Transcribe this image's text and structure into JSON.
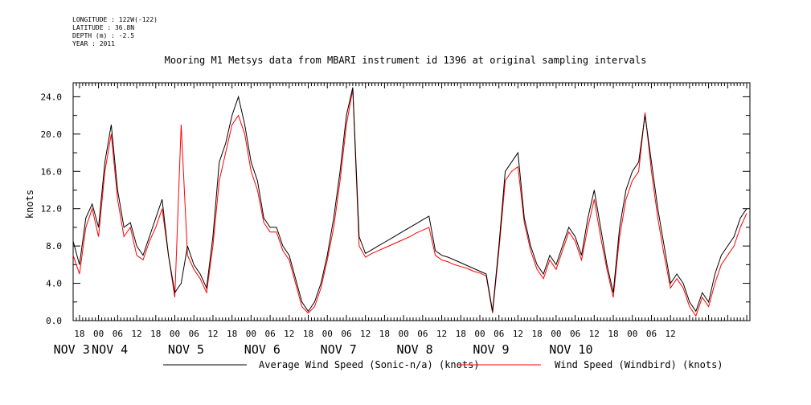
{
  "header": {
    "longitude": "LONGITUDE : 122W(-122)",
    "latitude": "LATITUDE : 36.8N",
    "depth": "DEPTH (m) : -2.5",
    "year": "YEAR : 2011"
  },
  "chart_data": {
    "type": "line",
    "title": "Mooring M1 Metsys data from MBARI instrument id 1396 at original sampling intervals",
    "ylabel": "knots",
    "ylim": [
      0,
      25.5
    ],
    "y_ticks": [
      "0.0",
      "4.0",
      "8.0",
      "12.0",
      "16.0",
      "20.0",
      "24.0"
    ],
    "x_hour_ticks": [
      "18",
      "00",
      "06",
      "12",
      "18",
      "00",
      "06",
      "12",
      "18",
      "00",
      "06",
      "12",
      "18",
      "00",
      "06",
      "12",
      "18",
      "00",
      "06",
      "12",
      "18",
      "00",
      "06",
      "12",
      "18",
      "00",
      "06",
      "12",
      "18",
      "00",
      "06",
      "12"
    ],
    "x_day_labels": [
      {
        "label": "NOV  3",
        "hour": 0
      },
      {
        "label": "NOV  4",
        "hour": 12
      },
      {
        "label": "NOV  5",
        "hour": 24
      },
      {
        "label": "NOV  6",
        "hour": 24
      },
      {
        "label": "NOV  7",
        "hour": 24
      },
      {
        "label": "NOV  8",
        "hour": 24
      },
      {
        "label": "NOV  9",
        "hour": 24
      },
      {
        "label": "NOV 10",
        "hour": 24
      }
    ],
    "x_hours_range": [
      -8,
      205
    ],
    "series": [
      {
        "name": "Average Wind Speed (Sonic-n/a) (knots)",
        "color": "#000000",
        "x": [
          -8,
          -6,
          -4,
          -2,
          0,
          2,
          4,
          6,
          8,
          10,
          12,
          14,
          16,
          18,
          20,
          22,
          24,
          26,
          28,
          30,
          32,
          34,
          36,
          38,
          40,
          42,
          44,
          46,
          48,
          50,
          52,
          54,
          56,
          58,
          60,
          62,
          64,
          66,
          68,
          70,
          72,
          74,
          76,
          78,
          80,
          82,
          84,
          86,
          88,
          90,
          92,
          94,
          96,
          98,
          100,
          102,
          104,
          106,
          108,
          110,
          112,
          114,
          116,
          118,
          120,
          122,
          124,
          126,
          128,
          130,
          132,
          134,
          136,
          138,
          140,
          142,
          144,
          146,
          148,
          150,
          152,
          154,
          156,
          158,
          160,
          162,
          164,
          166,
          168,
          170,
          172,
          174,
          176,
          178,
          180,
          182,
          184,
          186,
          188,
          190,
          192,
          194,
          196,
          198,
          200,
          202,
          204
        ],
        "y": [
          8.5,
          6,
          11,
          12.5,
          10,
          17,
          21,
          14,
          10,
          10.5,
          8,
          7,
          9,
          11,
          13,
          7,
          3,
          4,
          8,
          6,
          5,
          3.5,
          9,
          17,
          19,
          22,
          24,
          21,
          17,
          15,
          11,
          10,
          10,
          8,
          7,
          4.5,
          2,
          1,
          2,
          4,
          7,
          11,
          16,
          22,
          25,
          9,
          7.2,
          7.6,
          8.0,
          8.4,
          8.8,
          9.2,
          9.6,
          10.0,
          10.4,
          10.8,
          11.2,
          7.5,
          7,
          6.8,
          6.5,
          6.2,
          5.9,
          5.6,
          5.3,
          5,
          1,
          8,
          16,
          17,
          18,
          11,
          8,
          6,
          5,
          7,
          6,
          8,
          10,
          9,
          7,
          11,
          14,
          10,
          6,
          3,
          10,
          14,
          16,
          17,
          22,
          17,
          12,
          8,
          4,
          5,
          4,
          2,
          1,
          3,
          2,
          5,
          7,
          8,
          9,
          11,
          12
        ]
      },
      {
        "name": "Wind Speed (Windbird) (knots)",
        "color": "#ff0000",
        "x": [
          -8,
          -6,
          -4,
          -2,
          0,
          2,
          4,
          6,
          8,
          10,
          12,
          14,
          16,
          18,
          20,
          22,
          24,
          26,
          28,
          30,
          32,
          34,
          36,
          38,
          40,
          42,
          44,
          46,
          48,
          50,
          52,
          54,
          56,
          58,
          60,
          62,
          64,
          66,
          68,
          70,
          72,
          74,
          76,
          78,
          80,
          82,
          84,
          86,
          88,
          90,
          92,
          94,
          96,
          98,
          100,
          102,
          104,
          106,
          108,
          110,
          112,
          114,
          116,
          118,
          120,
          122,
          124,
          126,
          128,
          130,
          132,
          134,
          136,
          138,
          140,
          142,
          144,
          146,
          148,
          150,
          152,
          154,
          156,
          158,
          160,
          162,
          164,
          166,
          168,
          170,
          172,
          174,
          176,
          178,
          180,
          182,
          184,
          186,
          188,
          190,
          192,
          194,
          196,
          198,
          200,
          202,
          204
        ],
        "y": [
          7,
          5,
          10,
          12,
          9,
          16,
          20,
          13,
          9,
          10,
          7,
          6.5,
          8.5,
          10,
          12,
          7,
          2.5,
          21,
          7,
          5.5,
          4.5,
          3,
          8,
          15,
          18,
          21,
          22,
          20,
          16,
          14,
          10.5,
          9.5,
          9.5,
          7.5,
          6.5,
          4,
          1.5,
          0.8,
          1.5,
          3.5,
          6.5,
          10,
          15,
          21,
          24.8,
          8,
          6.8,
          7.2,
          7.5,
          7.8,
          8.1,
          8.4,
          8.7,
          9.0,
          9.4,
          9.7,
          10.0,
          7,
          6.5,
          6.3,
          6.0,
          5.8,
          5.6,
          5.3,
          5.1,
          4.8,
          0.8,
          7.5,
          15,
          16,
          16.5,
          10.5,
          7.5,
          5.5,
          4.5,
          6.5,
          5.5,
          7.5,
          9.5,
          8.5,
          6.5,
          10,
          13,
          9,
          5.5,
          2.5,
          9,
          13,
          15,
          16,
          22.3,
          16,
          11,
          7,
          3.5,
          4.5,
          3.5,
          1.5,
          0.5,
          2.5,
          1.5,
          4,
          6,
          7,
          8,
          10,
          11.5
        ]
      }
    ]
  }
}
